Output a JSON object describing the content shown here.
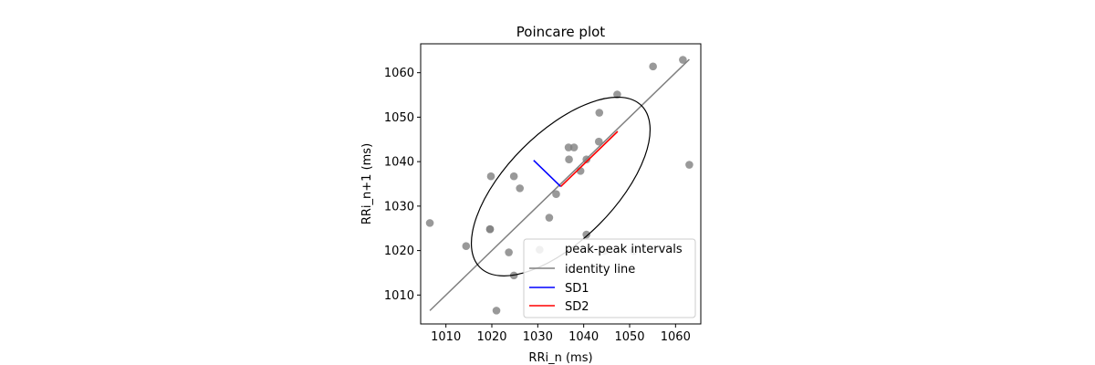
{
  "chart_data": {
    "type": "scatter",
    "title": "Poincare plot",
    "xlabel": "RRi_n (ms)",
    "ylabel": "RRi_n+1 (ms)",
    "xlim": [
      1004.5,
      1065.5
    ],
    "ylim": [
      1003.5,
      1066.5
    ],
    "xticks": [
      1010,
      1020,
      1030,
      1040,
      1050,
      1060
    ],
    "yticks": [
      1010,
      1020,
      1030,
      1040,
      1050,
      1060
    ],
    "legend_position": "lower-right",
    "points": {
      "name": "peak-peak intervals",
      "color": "#808080",
      "x": [
        1006.5,
        1014.4,
        1019.6,
        1019.6,
        1019.8,
        1021.0,
        1023.7,
        1024.8,
        1024.8,
        1026.1,
        1030.4,
        1032.5,
        1034.0,
        1036.7,
        1036.8,
        1037.9,
        1039.3,
        1040.6,
        1040.6,
        1043.3,
        1043.4,
        1044.5,
        1047.3,
        1050.9,
        1055.1,
        1061.6,
        1063.0
      ],
      "y": [
        1026.2,
        1021.0,
        1024.8,
        1024.8,
        1036.7,
        1006.5,
        1019.6,
        1036.7,
        1014.4,
        1034.0,
        1020.2,
        1027.4,
        1032.7,
        1043.2,
        1040.5,
        1043.2,
        1037.9,
        1040.5,
        1023.6,
        1044.5,
        1051.0,
        1019.9,
        1055.1,
        1019.9,
        1061.4,
        1062.9,
        1039.3
      ]
    },
    "identity_line": {
      "name": "identity line",
      "color": "#808080",
      "x": [
        1006.5,
        1063.0
      ],
      "y": [
        1006.5,
        1063.0
      ]
    },
    "sd1": {
      "name": "SD1",
      "color": "#0000ff",
      "x": [
        1035.0,
        1029.1
      ],
      "y": [
        1034.4,
        1040.3
      ]
    },
    "sd2": {
      "name": "SD2",
      "color": "#ff0000",
      "x": [
        1035.0,
        1047.4
      ],
      "y": [
        1034.4,
        1046.8
      ]
    },
    "ellipse": {
      "center": [
        1035.0,
        1034.4
      ],
      "sd1": 8.3,
      "sd2": 17.6,
      "color": "#000000"
    }
  }
}
